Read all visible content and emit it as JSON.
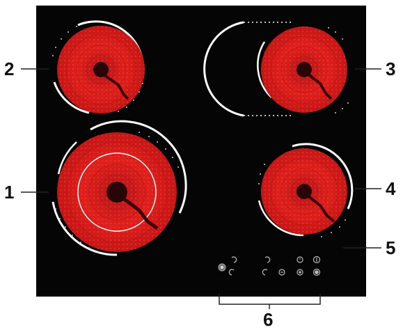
{
  "callouts": {
    "c1": "1",
    "c2": "2",
    "c3": "3",
    "c4": "4",
    "c5": "5",
    "c6": "6"
  },
  "colors": {
    "glass": "#050505",
    "zone_red": "#e0201c",
    "zone_dark_red": "#7a0a0a",
    "hub": "#2a0508",
    "rim": "#ffffff",
    "leader": "#222222"
  },
  "control_icons": [
    "power-icon",
    "minus-timer-icon",
    "plus-timer-icon",
    "zone-select-icon",
    "zone-select-2-icon",
    "minus-icon",
    "timer-icon",
    "plus-icon",
    "lock-icon",
    "dual-zone-icon"
  ]
}
